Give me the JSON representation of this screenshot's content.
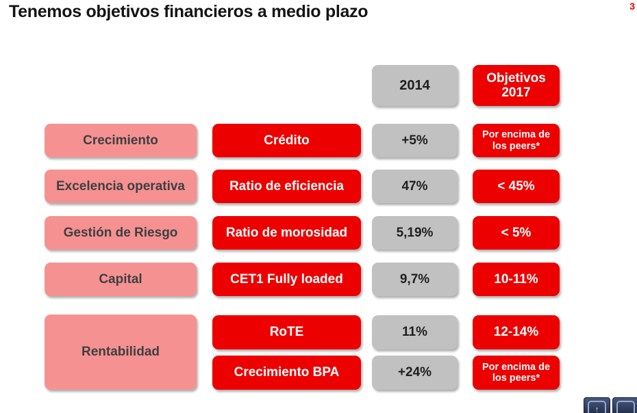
{
  "slide": {
    "title": "Tenemos objetivos financieros a medio plazo",
    "page_number": "3"
  },
  "colors": {
    "accent_red": "#ec0000",
    "category_pink": "#f69191",
    "value_gray": "#c1c1c1",
    "title_text": "#141414",
    "nav_navy": "#2c3b57"
  },
  "table": {
    "header_2014": "2014",
    "header_2017": "Objetivos 2017",
    "rows": [
      {
        "category": "Crecimiento",
        "metric": "Crédito",
        "value_2014": "+5%",
        "target_2017": "Por encima de los peers*"
      },
      {
        "category": "Excelencia operativa",
        "metric": "Ratio de eficiencia",
        "value_2014": "47%",
        "target_2017": "< 45%"
      },
      {
        "category": "Gestión de Riesgo",
        "metric": "Ratio de morosidad",
        "value_2014": "5,19%",
        "target_2017": "< 5%"
      },
      {
        "category": "Capital",
        "metric": "CET1 Fully loaded",
        "value_2014": "9,7%",
        "target_2017": "10-11%"
      }
    ],
    "group": {
      "category": "Rentabilidad",
      "sub_rows": [
        {
          "metric": "RoTE",
          "value_2014": "11%",
          "target_2017": "12-14%"
        },
        {
          "metric": "Crecimiento BPA",
          "value_2014": "+24%",
          "target_2017": "Por encima de los peers*"
        }
      ]
    }
  },
  "nav_widget": {
    "up_arrow": "↑"
  }
}
